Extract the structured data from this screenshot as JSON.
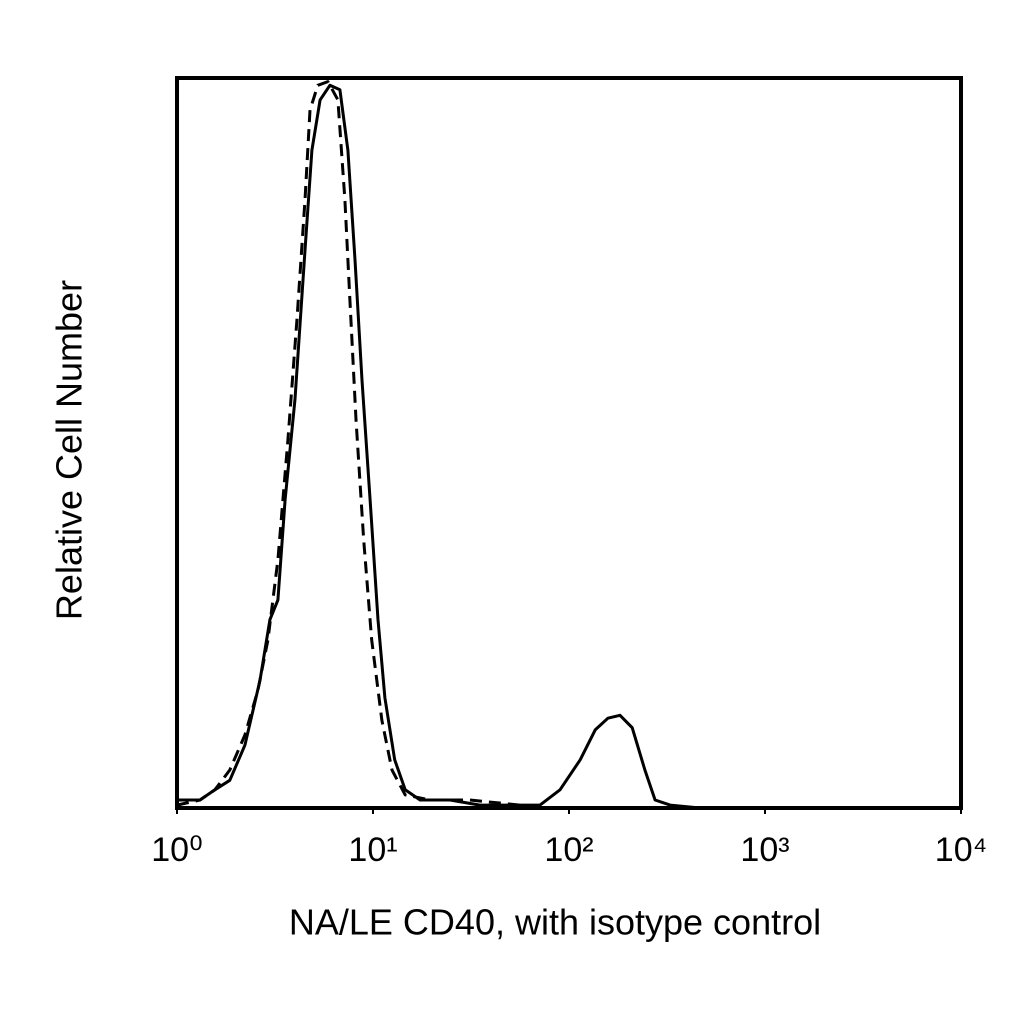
{
  "chart_data": {
    "type": "line",
    "xlabel": "NA/LE CD40, with isotype control",
    "ylabel": "Relative Cell Number",
    "xscale": "log",
    "xlim": [
      1,
      10000
    ],
    "xticks": [
      {
        "value": 1,
        "label": "10⁰"
      },
      {
        "value": 10,
        "label": "10¹"
      },
      {
        "value": 100,
        "label": "10²"
      },
      {
        "value": 1000,
        "label": "10³"
      },
      {
        "value": 10000,
        "label": "10⁴"
      }
    ],
    "ylim": [
      0,
      100
    ],
    "grid": false,
    "series": [
      {
        "color": "#000000",
        "dashed": false,
        "x": [
          1.0,
          1.31,
          1.56,
          1.86,
          2.22,
          2.65,
          2.98,
          3.27,
          3.56,
          4.0,
          4.5,
          4.88,
          5.37,
          6.03,
          6.78,
          7.45,
          8.09,
          8.79,
          9.66,
          10.6,
          11.5,
          12.9,
          14.6,
          17.4,
          24.7,
          35.1,
          56.2,
          71.1,
          90.0,
          114,
          136,
          158,
          182,
          210,
          244,
          275,
          328,
          466,
          10000
        ],
        "values": [
          1.1,
          1.1,
          2.5,
          3.8,
          8.6,
          17.5,
          25.8,
          28.5,
          42.2,
          56.0,
          76.4,
          90.1,
          97.0,
          99.0,
          98.4,
          90.1,
          75.1,
          58.6,
          42.2,
          25.8,
          15.1,
          6.6,
          2.5,
          1.1,
          1.1,
          0.4,
          0.4,
          0.4,
          2.5,
          6.6,
          10.7,
          12.3,
          12.7,
          11.0,
          5.2,
          1.1,
          0.4,
          0,
          0
        ]
      },
      {
        "color": "#000000",
        "dashed": true,
        "x": [
          1.0,
          1.31,
          1.56,
          1.86,
          2.22,
          2.59,
          2.91,
          3.27,
          3.68,
          4.09,
          4.5,
          4.77,
          5.23,
          5.89,
          6.62,
          7.19,
          7.62,
          8.19,
          8.97,
          9.85,
          11.1,
          12.5,
          14.6,
          19.5,
          31.2,
          56.2
        ],
        "values": [
          0.4,
          1.1,
          2.5,
          5.2,
          10.0,
          16.2,
          23.0,
          34.0,
          50.4,
          66.8,
          83.3,
          95.6,
          99.0,
          99.5,
          97.0,
          83.3,
          69.6,
          53.2,
          36.7,
          23.0,
          12.0,
          5.2,
          1.8,
          1.1,
          1.1,
          0.4
        ]
      }
    ]
  }
}
